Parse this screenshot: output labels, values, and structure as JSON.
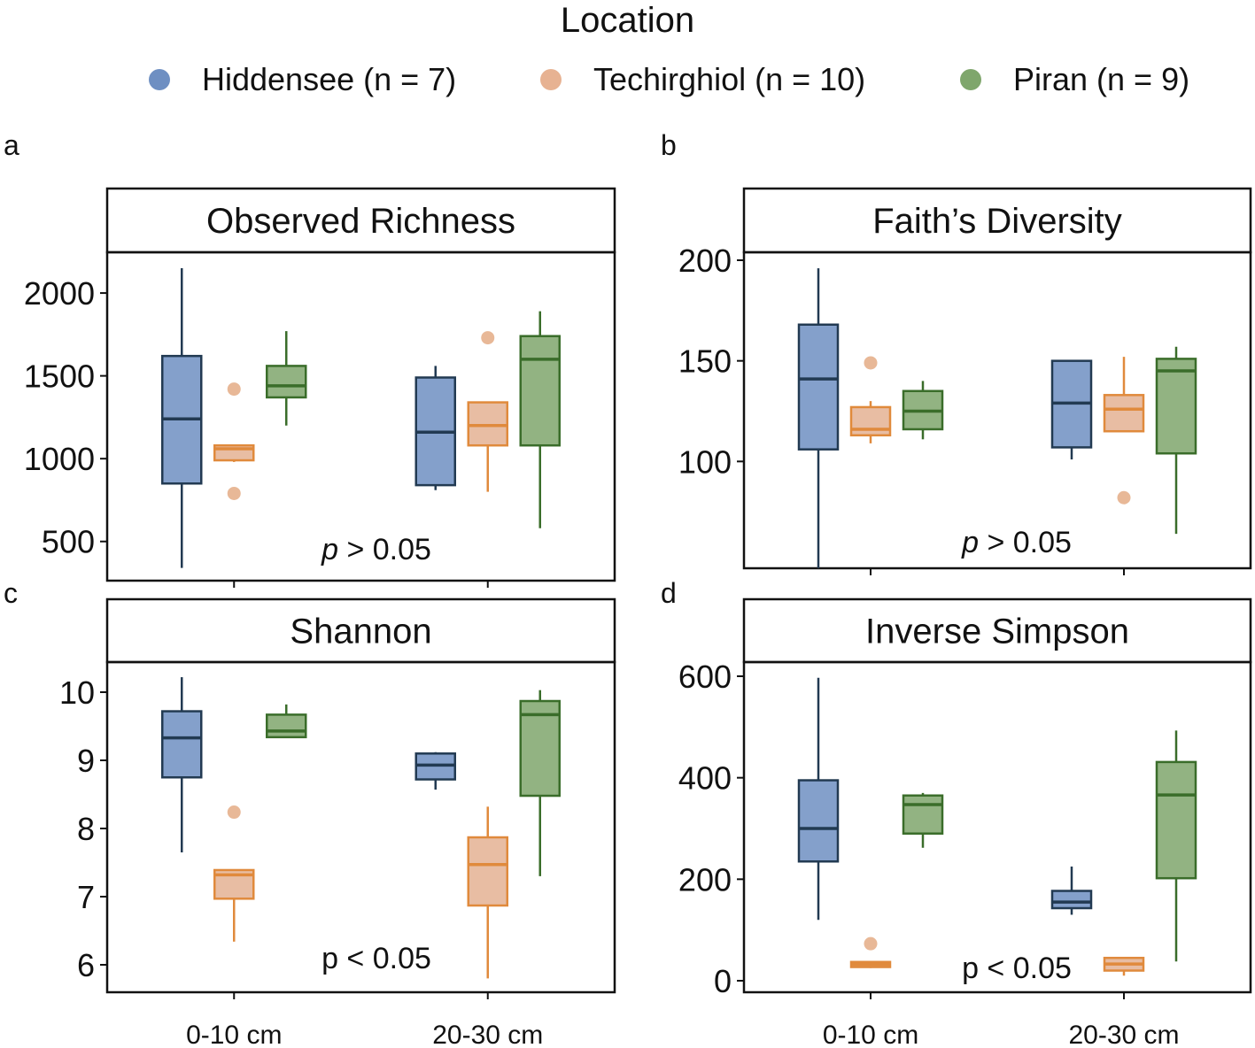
{
  "legend": {
    "title": "Location",
    "items": [
      {
        "label": "Hiddensee (n = 7)",
        "color": "#6e8fc2"
      },
      {
        "label": "Techirghiol (n = 10)",
        "color": "#e7b292"
      },
      {
        "label": "Piran (n = 9)",
        "color": "#7fa66c"
      }
    ]
  },
  "chart_data": [
    {
      "type": "box",
      "panel": "a",
      "title": "Observed Richness",
      "categories": [
        "0-10 cm",
        "20-30 cm"
      ],
      "ylim": [
        340,
        2170
      ],
      "yticks": [
        500,
        1000,
        1500,
        2000
      ],
      "annotation": {
        "text": "p > 0.05",
        "italic_p": true
      },
      "series": [
        {
          "name": "Hiddensee",
          "boxes": [
            {
              "min": 340,
              "q1": 850,
              "median": 1240,
              "q3": 1620,
              "max": 2150,
              "outliers": []
            },
            {
              "min": 810,
              "q1": 840,
              "median": 1160,
              "q3": 1490,
              "max": 1560,
              "outliers": []
            }
          ]
        },
        {
          "name": "Techirghiol",
          "boxes": [
            {
              "min": 980,
              "q1": 990,
              "median": 1060,
              "q3": 1080,
              "max": 1080,
              "outliers": [
                790,
                1420
              ]
            },
            {
              "min": 800,
              "q1": 1080,
              "median": 1200,
              "q3": 1340,
              "max": 1340,
              "outliers": [
                1730
              ]
            }
          ]
        },
        {
          "name": "Piran",
          "boxes": [
            {
              "min": 1200,
              "q1": 1370,
              "median": 1440,
              "q3": 1560,
              "max": 1770,
              "outliers": []
            },
            {
              "min": 580,
              "q1": 1080,
              "median": 1600,
              "q3": 1740,
              "max": 1890,
              "outliers": []
            }
          ]
        }
      ]
    },
    {
      "type": "box",
      "panel": "b",
      "title": "Faith’s Diversity",
      "categories": [
        "0-10 cm",
        "20-30 cm"
      ],
      "ylim": [
        47,
        203
      ],
      "yticks": [
        100,
        150,
        200
      ],
      "annotation": {
        "text": "p > 0.05",
        "italic_p": true
      },
      "series": [
        {
          "name": "Hiddensee",
          "boxes": [
            {
              "min": 47,
              "q1": 106,
              "median": 141,
              "q3": 168,
              "max": 196,
              "outliers": []
            },
            {
              "min": 101,
              "q1": 107,
              "median": 129,
              "q3": 150,
              "max": 150,
              "outliers": []
            }
          ]
        },
        {
          "name": "Techirghiol",
          "boxes": [
            {
              "min": 109,
              "q1": 113,
              "median": 116,
              "q3": 127,
              "max": 130,
              "outliers": [
                149
              ]
            },
            {
              "min": 115,
              "q1": 115,
              "median": 126,
              "q3": 133,
              "max": 152,
              "outliers": [
                82
              ]
            }
          ]
        },
        {
          "name": "Piran",
          "boxes": [
            {
              "min": 111,
              "q1": 116,
              "median": 125,
              "q3": 135,
              "max": 140,
              "outliers": []
            },
            {
              "min": 64,
              "q1": 104,
              "median": 145,
              "q3": 151,
              "max": 157,
              "outliers": []
            }
          ]
        }
      ]
    },
    {
      "type": "box",
      "panel": "c",
      "title": "Shannon",
      "categories": [
        "0-10 cm",
        "20-30 cm"
      ],
      "ylim": [
        5.8,
        10.3
      ],
      "yticks": [
        6,
        7,
        8,
        9,
        10
      ],
      "annotation": {
        "text": "p < 0.05",
        "italic_p": false
      },
      "series": [
        {
          "name": "Hiddensee",
          "boxes": [
            {
              "min": 7.65,
              "q1": 8.75,
              "median": 9.33,
              "q3": 9.72,
              "max": 10.22,
              "outliers": []
            },
            {
              "min": 8.57,
              "q1": 8.72,
              "median": 8.93,
              "q3": 9.1,
              "max": 9.12,
              "outliers": []
            }
          ]
        },
        {
          "name": "Techirghiol",
          "boxes": [
            {
              "min": 6.34,
              "q1": 6.97,
              "median": 7.32,
              "q3": 7.39,
              "max": 7.39,
              "outliers": [
                8.24
              ]
            },
            {
              "min": 5.8,
              "q1": 6.87,
              "median": 7.47,
              "q3": 7.87,
              "max": 8.32,
              "outliers": []
            }
          ]
        },
        {
          "name": "Piran",
          "boxes": [
            {
              "min": 9.33,
              "q1": 9.34,
              "median": 9.43,
              "q3": 9.67,
              "max": 9.82,
              "outliers": []
            },
            {
              "min": 7.3,
              "q1": 8.48,
              "median": 9.67,
              "q3": 9.87,
              "max": 10.03,
              "outliers": []
            }
          ]
        }
      ]
    },
    {
      "type": "box",
      "panel": "d",
      "title": "Inverse Simpson",
      "categories": [
        "0-10 cm",
        "20-30 cm"
      ],
      "ylim": [
        0,
        630
      ],
      "yticks": [
        0,
        200,
        400,
        600
      ],
      "annotation": {
        "text": "p < 0.05",
        "italic_p": false
      },
      "series": [
        {
          "name": "Hiddensee",
          "boxes": [
            {
              "min": 120,
              "q1": 235,
              "median": 300,
              "q3": 395,
              "max": 597,
              "outliers": []
            },
            {
              "min": 130,
              "q1": 143,
              "median": 155,
              "q3": 177,
              "max": 225,
              "outliers": []
            }
          ]
        },
        {
          "name": "Techirghiol",
          "boxes": [
            {
              "min": 25,
              "q1": 27,
              "median": 32,
              "q3": 37,
              "max": 37,
              "outliers": [
                73
              ]
            },
            {
              "min": 10,
              "q1": 20,
              "median": 33,
              "q3": 45,
              "max": 45,
              "outliers": []
            }
          ]
        },
        {
          "name": "Piran",
          "boxes": [
            {
              "min": 262,
              "q1": 290,
              "median": 347,
              "q3": 365,
              "max": 370,
              "outliers": []
            },
            {
              "min": 38,
              "q1": 202,
              "median": 366,
              "q3": 431,
              "max": 493,
              "outliers": []
            }
          ]
        }
      ]
    }
  ]
}
